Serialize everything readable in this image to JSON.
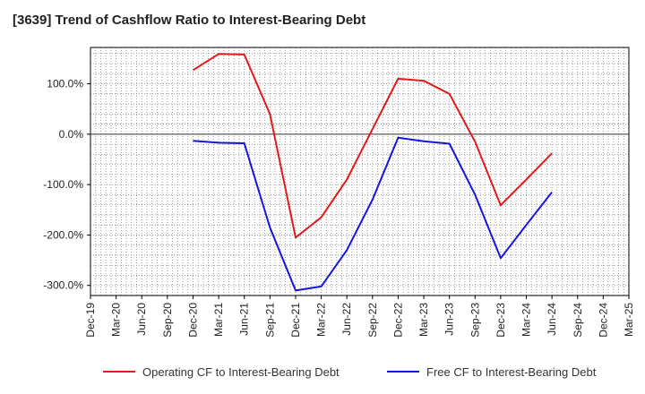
{
  "chart_data": {
    "type": "line",
    "title": "[3639]  Trend of Cashflow Ratio to Interest-Bearing Debt",
    "xlabel": "",
    "ylabel": "",
    "categories": [
      "Dec-19",
      "Mar-20",
      "Jun-20",
      "Sep-20",
      "Dec-20",
      "Mar-21",
      "Jun-21",
      "Sep-21",
      "Dec-21",
      "Mar-22",
      "Jun-22",
      "Sep-22",
      "Dec-22",
      "Mar-23",
      "Jun-23",
      "Sep-23",
      "Dec-23",
      "Mar-24",
      "Jun-24",
      "Sep-24",
      "Dec-24",
      "Mar-25"
    ],
    "y_ticks": [
      100,
      0,
      -100,
      -200,
      -300
    ],
    "y_tick_labels": [
      "100.0%",
      "0.0%",
      "-100.0%",
      "-200.0%",
      "-300.0%"
    ],
    "ylim": [
      -320,
      172
    ],
    "grid": true,
    "legend_position": "bottom",
    "series": [
      {
        "name": "Operating CF to Interest-Bearing Debt",
        "color": "#e31a1c",
        "values": [
          null,
          null,
          null,
          null,
          127,
          159,
          158,
          40,
          -205,
          -165,
          -90,
          10,
          110,
          106,
          80,
          -15,
          -141,
          -90,
          -38,
          null,
          null,
          null
        ]
      },
      {
        "name": "Free CF to Interest-Bearing Debt",
        "color": "#1515e0",
        "values": [
          null,
          null,
          null,
          null,
          -13,
          -17,
          -18,
          -185,
          -310,
          -302,
          -230,
          -130,
          -7,
          -14,
          -19,
          -120,
          -246,
          -180,
          -115,
          null,
          null,
          null
        ]
      }
    ]
  }
}
